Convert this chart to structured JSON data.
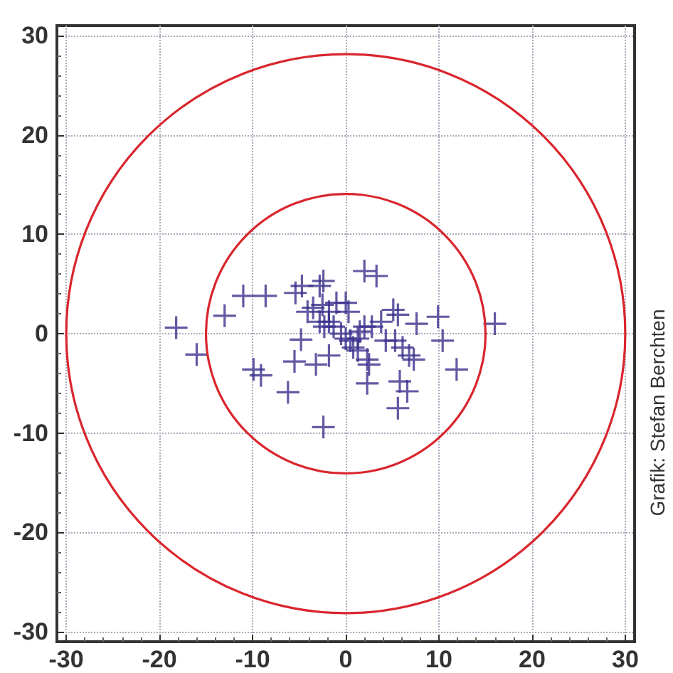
{
  "chart_data": {
    "type": "scatter",
    "annotations": [
      "Grafik: Stefan Berchten"
    ],
    "xlim": [
      -31,
      31
    ],
    "ylim": [
      -31,
      31
    ],
    "xticks": [
      -30,
      -20,
      -10,
      0,
      10,
      20,
      30
    ],
    "yticks": [
      -30,
      -20,
      -10,
      0,
      10,
      20,
      30
    ],
    "grid": true,
    "marker": "cross",
    "series": [
      {
        "color": "#3b2f8c",
        "x": [
          -18.2,
          -16.0,
          -13.0,
          -11.0,
          -8.6,
          -9.9,
          -9.1,
          -6.2,
          -5.5,
          -4.8,
          -5.4,
          -4.7,
          -3.2,
          -2.4,
          -1.8,
          -2.8,
          -2.4,
          -4.1,
          -3.5,
          -2.5,
          -1.8,
          -2.8,
          -2.3,
          -1.8,
          -1.3,
          -1.0,
          0,
          0.3,
          0.5,
          0,
          0.8,
          1.3,
          1.5,
          2.0,
          2.8,
          2.0,
          3.3,
          2.3,
          2.5,
          2.3,
          3.8,
          5.1,
          5.6,
          4.3,
          5.3,
          6.1,
          5.8,
          6.6,
          5.6,
          6.8,
          7.3,
          7.6,
          9.9,
          10.4,
          11.9,
          16.0,
          -0.5,
          1.3
        ],
        "values": [
          0.6,
          -2.1,
          1.8,
          3.8,
          3.8,
          -3.6,
          -4.2,
          -5.9,
          -2.8,
          -0.6,
          4.1,
          4.8,
          -3.1,
          -9.4,
          -2.2,
          4.8,
          5.3,
          2.2,
          2.6,
          2.9,
          2.2,
          1.2,
          0.7,
          1.2,
          0.7,
          3.1,
          3.1,
          2.2,
          -0.7,
          -0.5,
          -1.4,
          -1.7,
          0.2,
          0.7,
          0.7,
          6.3,
          5.8,
          -2.6,
          -3.1,
          -5.0,
          1.2,
          2.4,
          1.9,
          -0.7,
          -0.7,
          -1.4,
          -4.8,
          -5.8,
          -7.5,
          -2.2,
          -2.6,
          1.0,
          1.7,
          -0.7,
          -3.6,
          1.0,
          0,
          -0.5
        ]
      }
    ]
  }
}
